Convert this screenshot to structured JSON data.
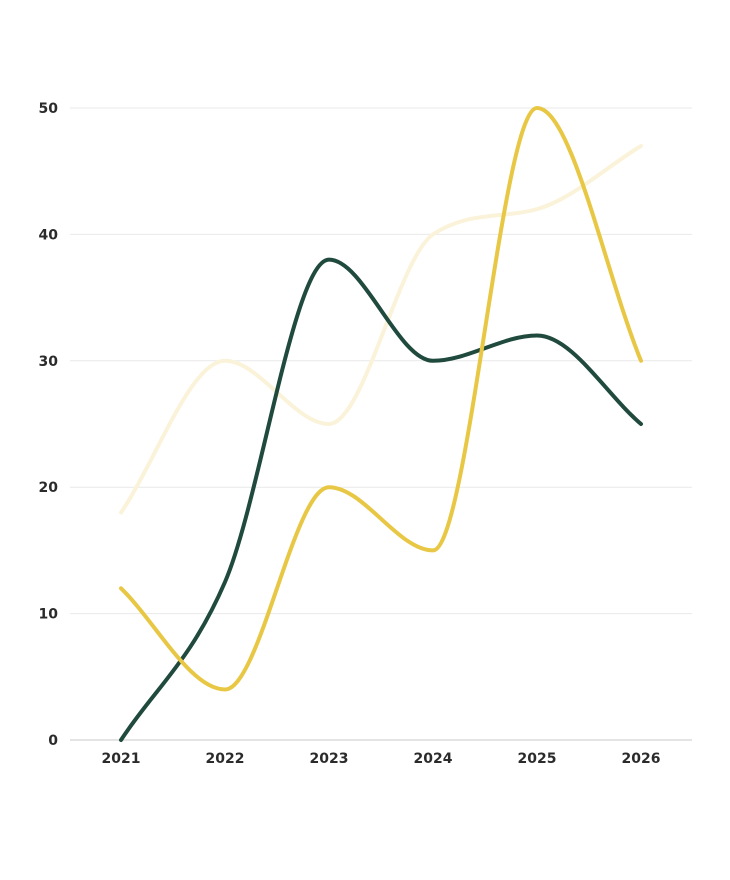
{
  "chart_data": {
    "type": "line",
    "title": "",
    "xlabel": "",
    "ylabel": "",
    "x": [
      "2021",
      "2022",
      "2023",
      "2024",
      "2025",
      "2026"
    ],
    "y_ticks": [
      "0",
      "10",
      "20",
      "30",
      "40",
      "50"
    ],
    "ylim": [
      0,
      50
    ],
    "grid": true,
    "legend": "none",
    "curve": "smooth",
    "series": [
      {
        "color": "#faf3d9",
        "values": [
          18,
          30,
          25,
          40,
          42,
          47
        ]
      },
      {
        "color": "#1f4a3d",
        "values": [
          0,
          12.5,
          38,
          30,
          32,
          25
        ]
      },
      {
        "color": "#e8c744",
        "values": [
          12,
          4,
          20,
          15,
          50,
          30
        ]
      }
    ]
  }
}
